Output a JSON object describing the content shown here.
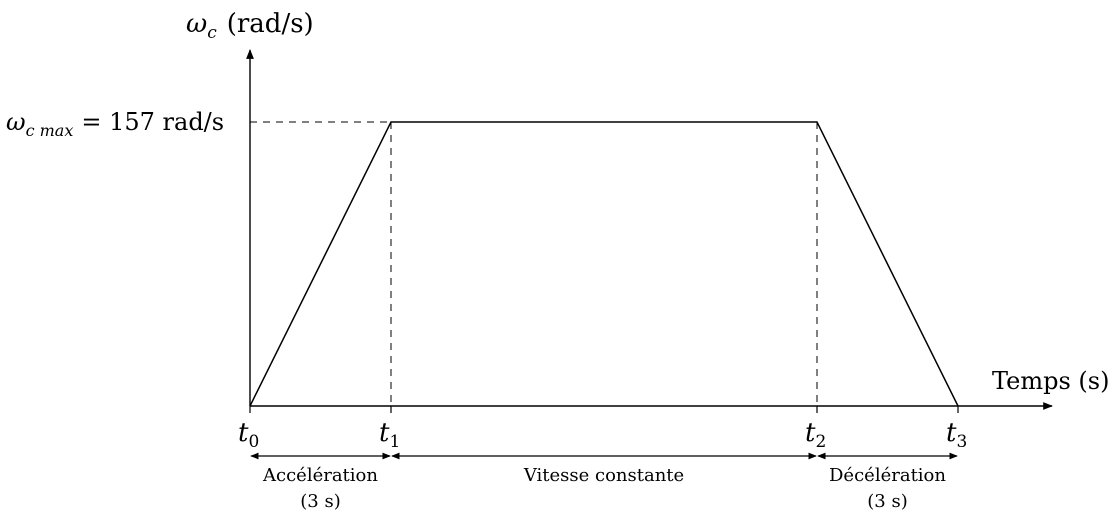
{
  "chart_data": {
    "type": "line",
    "x_label_text": "Temps (s)",
    "y_label_symbol": "ω",
    "y_label_sub": "c",
    "y_label_unit": "(rad/s)",
    "max_label": {
      "symbol": "ω",
      "sub": "c max",
      "rest": "= 157 rad/s"
    },
    "ymax_value": 157,
    "time_points": [
      {
        "sym": "t",
        "sub": "0"
      },
      {
        "sym": "t",
        "sub": "1"
      },
      {
        "sym": "t",
        "sub": "2"
      },
      {
        "sym": "t",
        "sub": "3"
      }
    ],
    "phases": [
      {
        "label": "Accélération",
        "duration": "(3 s)"
      },
      {
        "label": "Vitesse constante",
        "duration": ""
      },
      {
        "label": "Décélération",
        "duration": "(3 s)"
      }
    ],
    "profile": [
      {
        "t": "t0",
        "omega": 0
      },
      {
        "t": "t1",
        "omega": 157
      },
      {
        "t": "t2",
        "omega": 157
      },
      {
        "t": "t3",
        "omega": 0
      }
    ]
  }
}
